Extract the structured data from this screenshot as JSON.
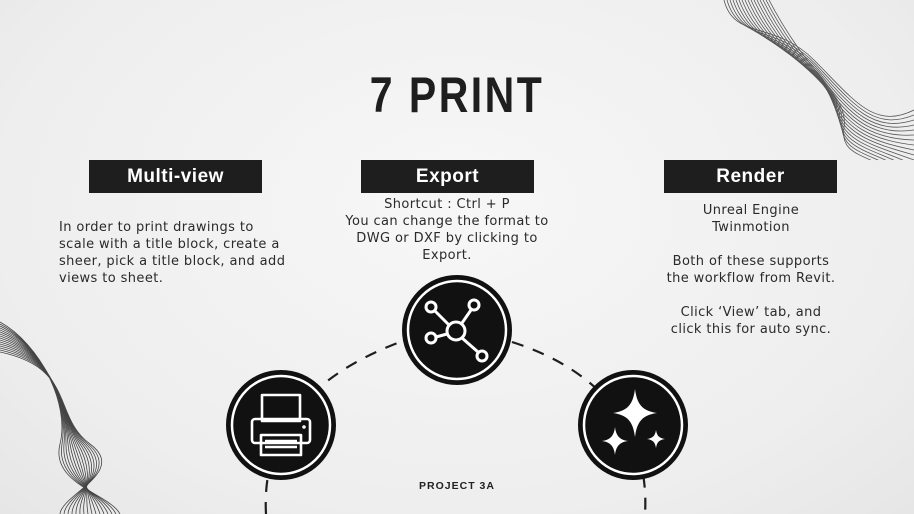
{
  "slide": {
    "title": "7 PRINT",
    "footer": "PROJECT 3A"
  },
  "sections": [
    {
      "label": "Multi-view",
      "lines": [
        "In order to print drawings to",
        "scale with a title block, create a",
        "sheer, pick a title block, and add",
        "views to sheet."
      ],
      "icon": "printer-icon"
    },
    {
      "label": "Export",
      "lines": [
        "Shortcut : Ctrl + P",
        "You can change the format to",
        "DWG or DXF by clicking to",
        "Export."
      ],
      "icon": "network-nodes-icon"
    },
    {
      "label": "Render",
      "lines": [
        "Unreal Engine",
        "Twinmotion",
        "",
        "Both of these supports",
        "the workflow from Revit.",
        "",
        "Click ‘View’ tab, and",
        "click this for auto sync."
      ],
      "icon": "sparkles-icon"
    }
  ],
  "colors": {
    "dark": "#1e1e1e",
    "box_text": "#ffffff",
    "background": "#f2f2f2"
  }
}
